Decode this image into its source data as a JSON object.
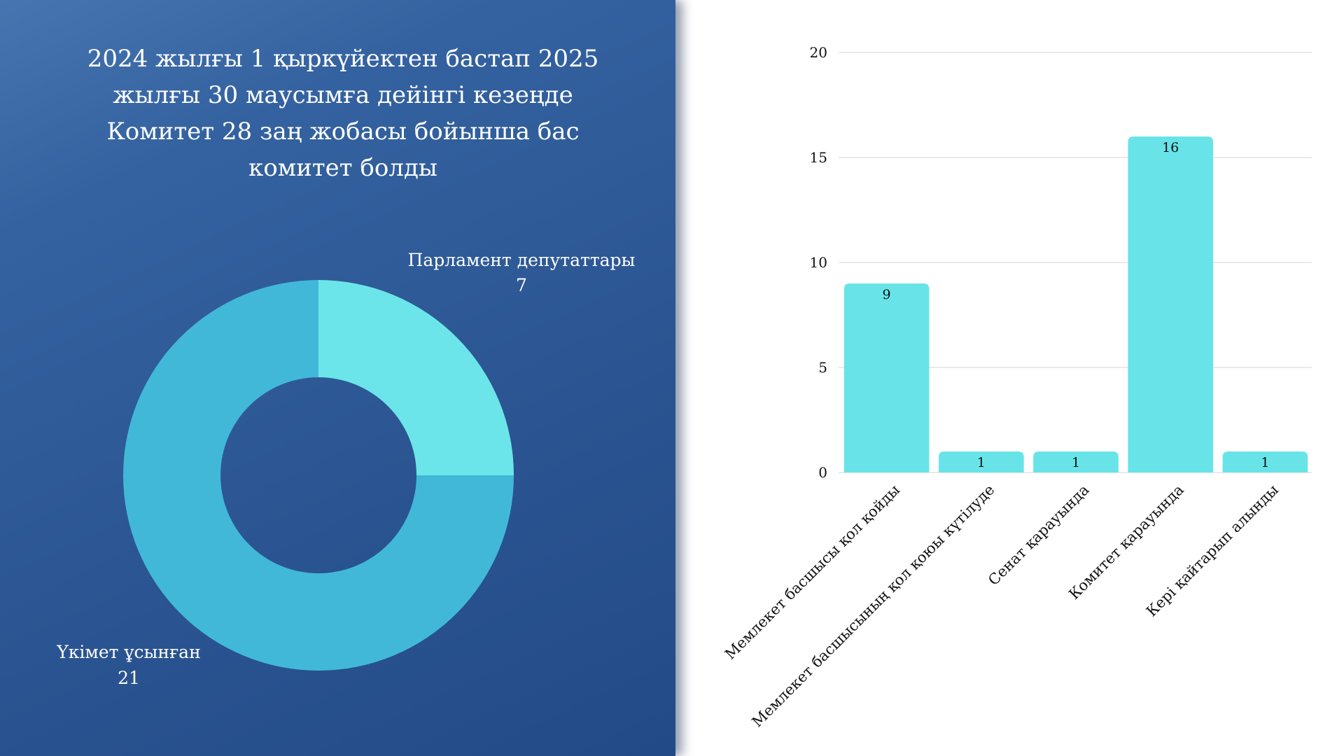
{
  "title": "2024 жылғы 1 қыркүйектен бастап 2025 жылғы 30 маусымға дейінгі кезеңде Комитет 28 заң жобасы бойынша бас комитет болды",
  "colors": {
    "panel": "#2c5794",
    "donut_primary": "#42b8d8",
    "donut_secondary": "#6be5e9",
    "bar": "#68e4e8",
    "grid": "#dcdcdc"
  },
  "chart_data": [
    {
      "type": "pie",
      "style": "donut",
      "categories": [
        "Парламент депутаттары",
        "Үкімет ұсынған"
      ],
      "values": [
        7,
        21
      ],
      "labels": [
        {
          "name": "Парламент депутаттары",
          "value": "7"
        },
        {
          "name": "Үкімет ұсынған",
          "value": "21"
        }
      ]
    },
    {
      "type": "bar",
      "categories": [
        "Мемлекет басшысы қол қойды",
        "Мемлекет басшысының қол қоюы күтілуде",
        "Сенат қарауында",
        "Комитет қарауында",
        "Кері қайтарып алынды"
      ],
      "values": [
        9,
        1,
        1,
        16,
        1
      ],
      "data_labels": [
        "9",
        "1",
        "1",
        "16",
        "1"
      ],
      "y_ticks": [
        "0",
        "5",
        "10",
        "15",
        "20"
      ],
      "ylim": [
        0,
        20
      ],
      "grid": true,
      "legend": "none"
    }
  ]
}
